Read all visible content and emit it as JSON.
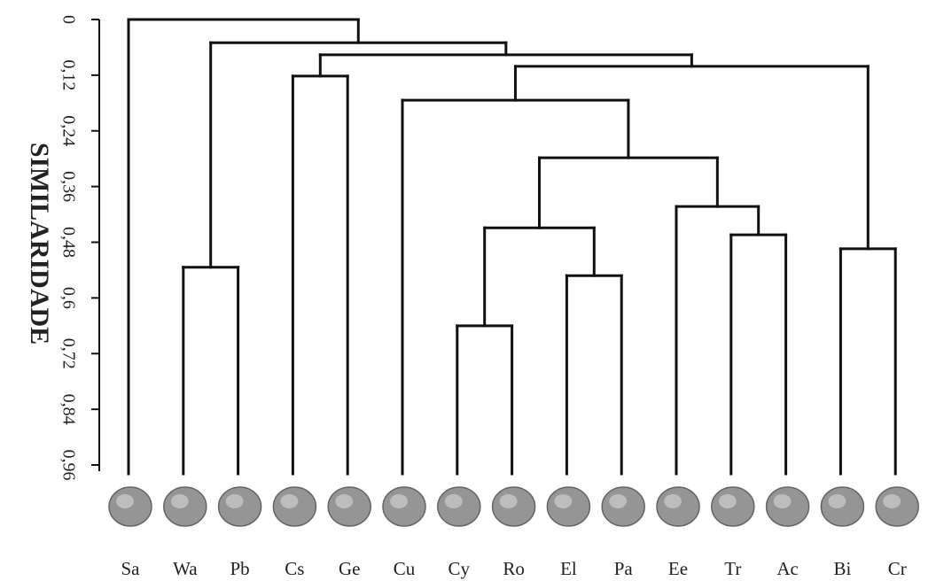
{
  "chart_data": {
    "type": "dendrogram",
    "ylabel": "SIMILARIDADE",
    "ylim": [
      0,
      0.96
    ],
    "yticks": [
      0,
      {
        "value": 0.12,
        "label": "0,12"
      },
      {
        "value": 0.24,
        "label": "0,24"
      },
      {
        "value": 0.36,
        "label": "0,36"
      },
      {
        "value": 0.48,
        "label": "0,48"
      },
      {
        "value": 0.6,
        "label": "0,6"
      },
      {
        "value": 0.72,
        "label": "0,72"
      },
      {
        "value": 0.84,
        "label": "0,84"
      },
      {
        "value": 0.96,
        "label": "0,96"
      }
    ],
    "leaves": [
      "Sa",
      "Wa",
      "Pb",
      "Cs",
      "Ge",
      "Cu",
      "Cy",
      "Ro",
      "El",
      "Pa",
      "Ee",
      "Tr",
      "Ac",
      "Bi",
      "Cr"
    ],
    "links": [
      [
        1,
        2,
        0.534
      ],
      [
        3,
        4,
        0.122
      ],
      [
        6,
        7,
        0.66
      ],
      [
        8,
        9,
        0.552
      ],
      [
        17,
        18,
        0.449
      ],
      [
        11,
        12,
        0.464
      ],
      [
        10,
        20,
        0.403
      ],
      [
        13,
        14,
        0.494
      ],
      [
        19,
        21,
        0.298
      ],
      [
        5,
        23,
        0.174
      ],
      [
        24,
        22,
        0.101
      ],
      [
        16,
        25,
        0.076
      ],
      [
        15,
        26,
        0.05
      ],
      [
        0,
        27,
        0
      ]
    ],
    "color": "#111111"
  }
}
